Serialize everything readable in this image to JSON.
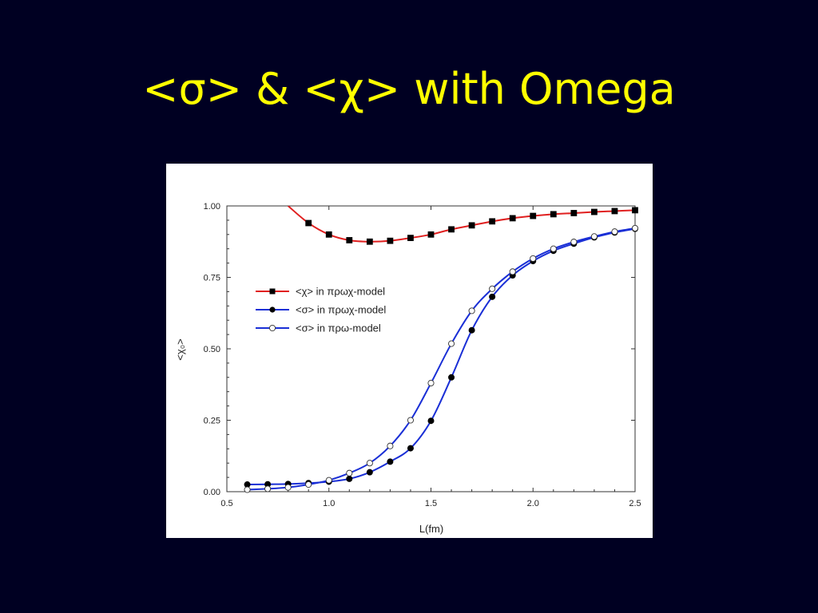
{
  "slide": {
    "title": "<σ> & <χ> with Omega"
  },
  "colors": {
    "background": "#000022",
    "title": "#ffff00",
    "chi_line": "#e02020",
    "sigma_line": "#1a2fd6"
  },
  "chart_data": {
    "type": "line",
    "xlabel": "L(fm)",
    "ylabel": "<χ₀>",
    "xlim": [
      0.5,
      2.5
    ],
    "ylim": [
      0.0,
      1.0
    ],
    "xticks": [
      "0.5",
      "1.0",
      "1.5",
      "2.0",
      "2.5"
    ],
    "yticks": [
      "0.00",
      "0.25",
      "0.50",
      "0.75",
      "1.00"
    ],
    "legend_position": "left-middle",
    "series": [
      {
        "name": "<χ> in πρωχ-model",
        "marker": "filled-square",
        "color": "#e02020",
        "x": [
          0.6,
          0.7,
          0.8,
          0.9,
          1.0,
          1.1,
          1.2,
          1.3,
          1.4,
          1.5,
          1.6,
          1.7,
          1.8,
          1.9,
          2.0,
          2.1,
          2.2,
          2.3,
          2.4,
          2.5
        ],
        "y": [
          null,
          null,
          null,
          0.94,
          0.9,
          0.88,
          0.875,
          0.878,
          0.888,
          0.9,
          0.918,
          0.932,
          0.946,
          0.957,
          0.965,
          0.971,
          0.975,
          0.979,
          0.982,
          0.985
        ],
        "curve_start": [
          0.8,
          1.0
        ]
      },
      {
        "name": "<σ> in πρωχ-model",
        "marker": "filled-circle",
        "color": "#1a2fd6",
        "x": [
          0.6,
          0.7,
          0.8,
          0.9,
          1.0,
          1.1,
          1.2,
          1.3,
          1.4,
          1.5,
          1.6,
          1.7,
          1.8,
          1.9,
          2.0,
          2.1,
          2.2,
          2.3,
          2.4,
          2.5
        ],
        "y": [
          0.025,
          0.026,
          0.027,
          0.03,
          0.035,
          0.045,
          0.068,
          0.105,
          0.152,
          0.248,
          0.4,
          0.565,
          0.682,
          0.757,
          0.807,
          0.843,
          0.868,
          0.89,
          0.907,
          0.92
        ]
      },
      {
        "name": "<σ> in πρω-model",
        "marker": "open-circle",
        "color": "#1a2fd6",
        "x": [
          0.6,
          0.7,
          0.8,
          0.9,
          1.0,
          1.1,
          1.2,
          1.3,
          1.4,
          1.5,
          1.6,
          1.7,
          1.8,
          1.9,
          2.0,
          2.1,
          2.2,
          2.3,
          2.4,
          2.5
        ],
        "y": [
          0.007,
          0.01,
          0.015,
          0.025,
          0.04,
          0.065,
          0.1,
          0.16,
          0.25,
          0.38,
          0.518,
          0.633,
          0.71,
          0.77,
          0.816,
          0.85,
          0.874,
          0.893,
          0.91,
          0.922
        ]
      }
    ]
  }
}
